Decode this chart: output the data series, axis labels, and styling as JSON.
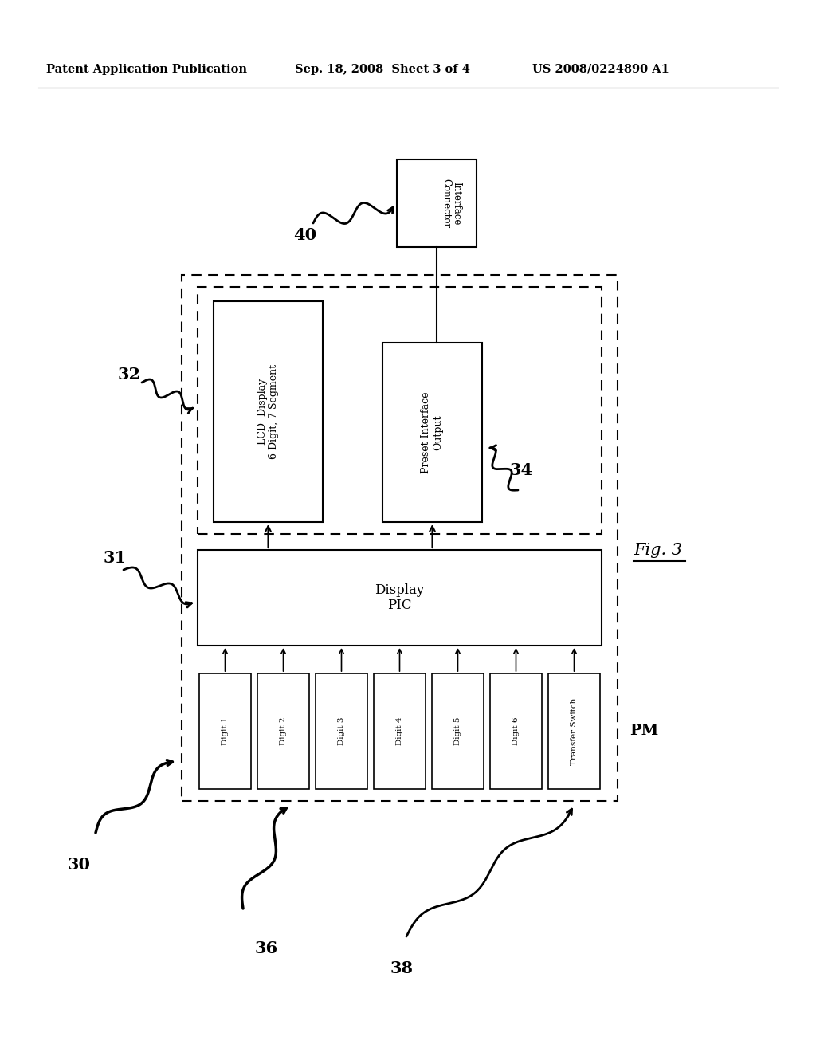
{
  "header_left": "Patent Application Publication",
  "header_mid": "Sep. 18, 2008  Sheet 3 of 4",
  "header_right": "US 2008/0224890 A1",
  "fig_label": "Fig. 3",
  "label_30": "30",
  "label_31": "31",
  "label_32": "32",
  "label_34": "34",
  "label_36": "36",
  "label_38": "38",
  "label_40": "40",
  "label_PM": "PM",
  "box_interface_connector_line1": "Interface",
  "box_interface_connector_line2": "Connector",
  "box_lcd_line1": "LCD  Display",
  "box_lcd_line2": "6 Digit, 7 Segment",
  "box_preset_line1": "Preset Interface",
  "box_preset_line2": "Output",
  "box_display_pic": "Display\nPIC",
  "box_digits": [
    "Digit 1",
    "Digit 2",
    "Digit 3",
    "Digit 4",
    "Digit 5",
    "Digit 6",
    "Transfer Switch"
  ],
  "bg_color": "#ffffff",
  "line_color": "#000000"
}
